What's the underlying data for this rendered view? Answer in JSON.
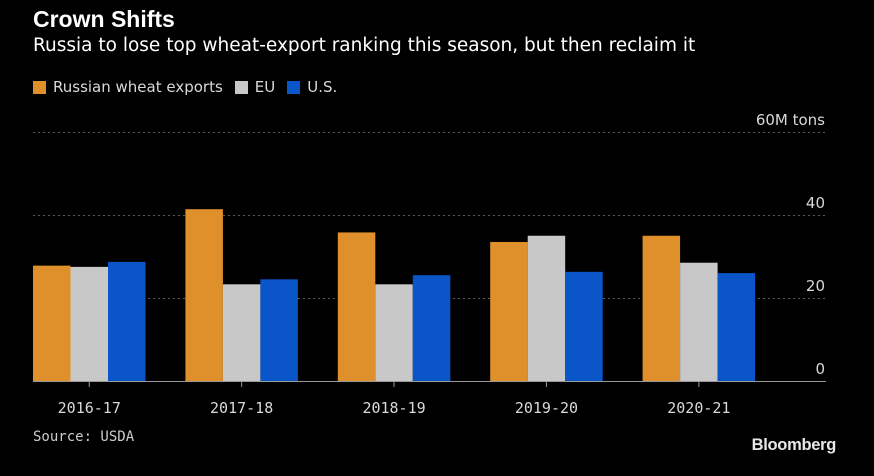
{
  "header": {
    "title": "Crown Shifts",
    "subtitle": "Russia to lose top wheat-export ranking this season, but then reclaim it"
  },
  "footer": {
    "source": "Source: USDA",
    "brand": "Bloomberg"
  },
  "colors": {
    "background": "#000000",
    "russia": "#E0902A",
    "eu": "#C8C8C8",
    "us": "#0A55C8",
    "grid": "#5a5a5a",
    "axis_text": "#d9d9d9"
  },
  "chart_data": {
    "type": "bar",
    "categories": [
      "2016-17",
      "2017-18",
      "2018-19",
      "2019-20",
      "2020-21"
    ],
    "series": [
      {
        "name": "Russian wheat exports",
        "color": "#E0902A",
        "values": [
          27.8,
          41.4,
          35.8,
          33.5,
          35.0
        ]
      },
      {
        "name": "EU",
        "color": "#C8C8C8",
        "values": [
          27.5,
          23.3,
          23.3,
          35.0,
          28.5
        ]
      },
      {
        "name": "U.S.",
        "color": "#0A55C8",
        "values": [
          28.7,
          24.5,
          25.5,
          26.3,
          26.0
        ]
      }
    ],
    "y_ticks": [
      "0",
      "20",
      "40",
      "60M tons"
    ],
    "ylim": [
      0,
      60
    ],
    "grid": true,
    "legend_position": "top-left",
    "y_axis_side": "right"
  }
}
